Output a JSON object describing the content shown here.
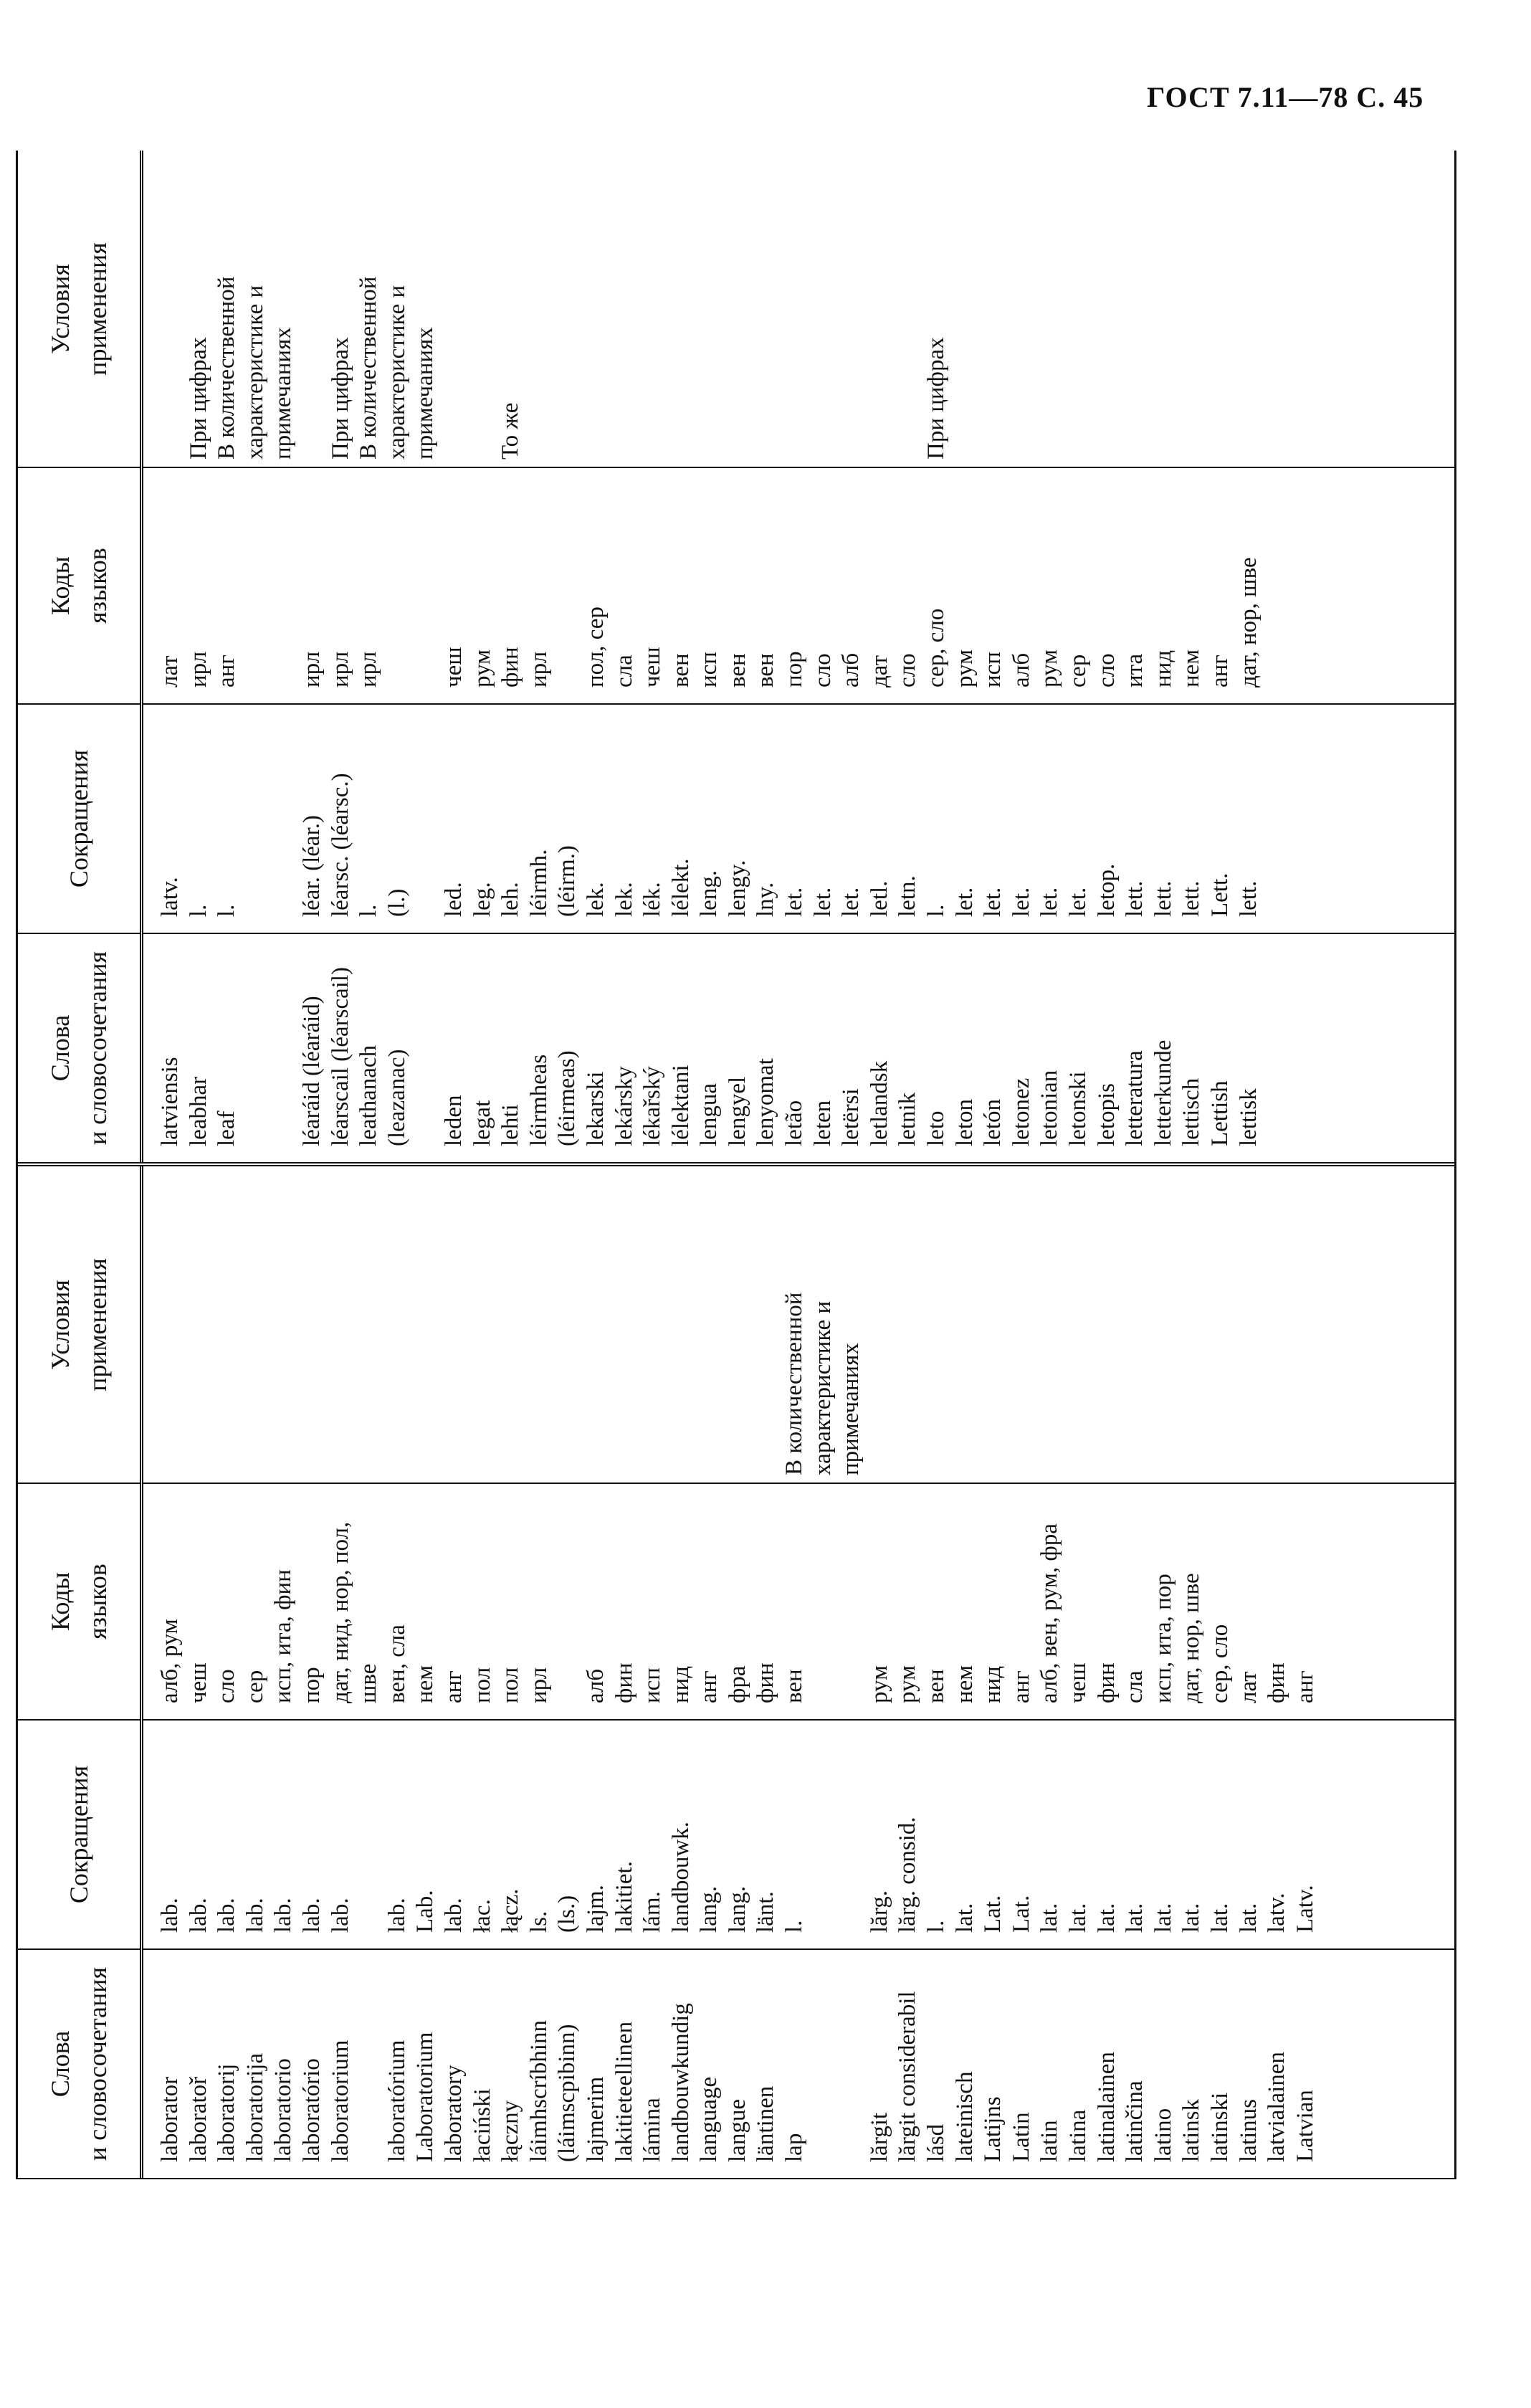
{
  "page_header": "ГОСТ 7.11—78 С. 45",
  "columns": {
    "words": "Слова\nи словосочетания",
    "abbr": "Сокращения",
    "codes": "Коды\nязыков",
    "cond": "Условия\nприменения"
  },
  "left_table": {
    "rows": [
      {
        "word": "laborator",
        "abbr": "lab.",
        "codes": "алб, рум",
        "cond": ""
      },
      {
        "word": "laboratoř",
        "abbr": "lab.",
        "codes": "чеш",
        "cond": ""
      },
      {
        "word": "laboratorij",
        "abbr": "lab.",
        "codes": "сло",
        "cond": ""
      },
      {
        "word": "laboratorija",
        "abbr": "lab.",
        "codes": "сер",
        "cond": ""
      },
      {
        "word": "laboratorio",
        "abbr": "lab.",
        "codes": "исп, ита, фин",
        "cond": ""
      },
      {
        "word": "laboratório",
        "abbr": "lab.",
        "codes": "пор",
        "cond": ""
      },
      {
        "word": "laboratorium",
        "abbr": "lab.",
        "codes": "дат, нид, нор, пол,",
        "cond": ""
      },
      {
        "word": "",
        "abbr": "",
        "codes": "шве",
        "cond": ""
      },
      {
        "word": "laboratórium",
        "abbr": "lab.",
        "codes": "вен, сла",
        "cond": ""
      },
      {
        "word": "Laboratorium",
        "abbr": "Lab.",
        "codes": "нем",
        "cond": ""
      },
      {
        "word": "laboratory",
        "abbr": "lab.",
        "codes": "анг",
        "cond": ""
      },
      {
        "word": "łaciński",
        "abbr": "łac.",
        "codes": "пол",
        "cond": ""
      },
      {
        "word": "łączny",
        "abbr": "łącz.",
        "codes": "пол",
        "cond": ""
      },
      {
        "word": "láimhscríbhinn",
        "abbr": "ls.",
        "codes": "ирл",
        "cond": ""
      },
      {
        "word": "(láimscpibinn)",
        "abbr": "(ls.)",
        "codes": "",
        "cond": ""
      },
      {
        "word": "lajmerim",
        "abbr": "lajm.",
        "codes": "алб",
        "cond": ""
      },
      {
        "word": "lakitieteellinen",
        "abbr": "lakitiet.",
        "codes": "фин",
        "cond": ""
      },
      {
        "word": "lámina",
        "abbr": "lám.",
        "codes": "исп",
        "cond": ""
      },
      {
        "word": "landbouwkundig",
        "abbr": "landbouwk.",
        "codes": "нид",
        "cond": ""
      },
      {
        "word": "language",
        "abbr": "lang.",
        "codes": "анг",
        "cond": ""
      },
      {
        "word": "langue",
        "abbr": "lang.",
        "codes": "фра",
        "cond": ""
      },
      {
        "word": "läntinen",
        "abbr": "länt.",
        "codes": "фин",
        "cond": ""
      },
      {
        "word": "lap",
        "abbr": "l.",
        "codes": "вен",
        "cond": "В количественной"
      },
      {
        "word": "",
        "abbr": "",
        "codes": "",
        "cond": "характеристике и"
      },
      {
        "word": "",
        "abbr": "",
        "codes": "",
        "cond": "примечаниях"
      },
      {
        "word": "lărgit",
        "abbr": "lărg.",
        "codes": "рум",
        "cond": ""
      },
      {
        "word": "lărgit considerabil",
        "abbr": "lărg. consid.",
        "codes": "рум",
        "cond": ""
      },
      {
        "word": "lásd",
        "abbr": "l.",
        "codes": "вен",
        "cond": ""
      },
      {
        "word": "lateinisch",
        "abbr": "lat.",
        "codes": "нем",
        "cond": ""
      },
      {
        "word": "Latijns",
        "abbr": "Lat.",
        "codes": "нид",
        "cond": ""
      },
      {
        "word": "Latin",
        "abbr": "Lat.",
        "codes": "анг",
        "cond": ""
      },
      {
        "word": "latin",
        "abbr": "lat.",
        "codes": "алб, вен, рум, фра",
        "cond": ""
      },
      {
        "word": "latina",
        "abbr": "lat.",
        "codes": "чеш",
        "cond": ""
      },
      {
        "word": "latinalainen",
        "abbr": "lat.",
        "codes": "фин",
        "cond": ""
      },
      {
        "word": "latinčina",
        "abbr": "lat.",
        "codes": "сла",
        "cond": ""
      },
      {
        "word": "latino",
        "abbr": "lat.",
        "codes": "исп, ита, пор",
        "cond": ""
      },
      {
        "word": "latinsk",
        "abbr": "lat.",
        "codes": "дат, нор, шве",
        "cond": ""
      },
      {
        "word": "latinski",
        "abbr": "lat.",
        "codes": "сер, сло",
        "cond": ""
      },
      {
        "word": "latinus",
        "abbr": "lat.",
        "codes": "лат",
        "cond": ""
      },
      {
        "word": "latvialainen",
        "abbr": "latv.",
        "codes": "фин",
        "cond": ""
      },
      {
        "word": "Latvian",
        "abbr": "Latv.",
        "codes": "анг",
        "cond": ""
      }
    ]
  },
  "right_table": {
    "rows": [
      {
        "word": "latviensis",
        "abbr": "latv.",
        "codes": "лат",
        "cond": ""
      },
      {
        "word": "leabhar",
        "abbr": "l.",
        "codes": "ирл",
        "cond": "При цифрах"
      },
      {
        "word": "leaf",
        "abbr": "l.",
        "codes": "анг",
        "cond": "В количественной"
      },
      {
        "word": "",
        "abbr": "",
        "codes": "",
        "cond": "характеристике и"
      },
      {
        "word": "",
        "abbr": "",
        "codes": "",
        "cond": "примечаниях"
      },
      {
        "word": "léaráid (léaráid)",
        "abbr": "léar. (léar.)",
        "codes": "ирл",
        "cond": ""
      },
      {
        "word": "léarscail (léarscail)",
        "abbr": "léarsc. (léarsc.)",
        "codes": "ирл",
        "cond": "При цифрах"
      },
      {
        "word": "leathanach",
        "abbr": "l.",
        "codes": "ирл",
        "cond": "В количественной"
      },
      {
        "word": "(leazanac)",
        "abbr": "(l.)",
        "codes": "",
        "cond": "характеристике и"
      },
      {
        "word": "",
        "abbr": "",
        "codes": "",
        "cond": "примечаниях"
      },
      {
        "word": "leden",
        "abbr": "led.",
        "codes": "чеш",
        "cond": ""
      },
      {
        "word": "legat",
        "abbr": "leg.",
        "codes": "рум",
        "cond": ""
      },
      {
        "word": "lehti",
        "abbr": "leh.",
        "codes": "фин",
        "cond": "То же"
      },
      {
        "word": "léirmheas",
        "abbr": "léirmh.",
        "codes": "ирл",
        "cond": ""
      },
      {
        "word": "(léirmeas)",
        "abbr": "(léirm.)",
        "codes": "",
        "cond": ""
      },
      {
        "word": "lekarski",
        "abbr": "lek.",
        "codes": "пол, сер",
        "cond": ""
      },
      {
        "word": "lekársky",
        "abbr": "lek.",
        "codes": "сла",
        "cond": ""
      },
      {
        "word": "lékařský",
        "abbr": "lék.",
        "codes": "чеш",
        "cond": ""
      },
      {
        "word": "lélektani",
        "abbr": "lélekt.",
        "codes": "вен",
        "cond": ""
      },
      {
        "word": "lengua",
        "abbr": "leng.",
        "codes": "исп",
        "cond": ""
      },
      {
        "word": "lengyel",
        "abbr": "lengy.",
        "codes": "вен",
        "cond": ""
      },
      {
        "word": "lenyomat",
        "abbr": "lny.",
        "codes": "вен",
        "cond": ""
      },
      {
        "word": "letão",
        "abbr": "let.",
        "codes": "пор",
        "cond": ""
      },
      {
        "word": "leten",
        "abbr": "let.",
        "codes": "сло",
        "cond": ""
      },
      {
        "word": "letërsi",
        "abbr": "let.",
        "codes": "алб",
        "cond": ""
      },
      {
        "word": "letlandsk",
        "abbr": "letl.",
        "codes": "дат",
        "cond": ""
      },
      {
        "word": "letnik",
        "abbr": "letn.",
        "codes": "сло",
        "cond": ""
      },
      {
        "word": "leto",
        "abbr": "l.",
        "codes": "сер, сло",
        "cond": "При цифрах"
      },
      {
        "word": "leton",
        "abbr": "let.",
        "codes": "рум",
        "cond": ""
      },
      {
        "word": "letón",
        "abbr": "let.",
        "codes": "исп",
        "cond": ""
      },
      {
        "word": "letonez",
        "abbr": "let.",
        "codes": "алб",
        "cond": ""
      },
      {
        "word": "letonian",
        "abbr": "let.",
        "codes": "рум",
        "cond": ""
      },
      {
        "word": "letonski",
        "abbr": "let.",
        "codes": "сер",
        "cond": ""
      },
      {
        "word": "letopis",
        "abbr": "letop.",
        "codes": "сло",
        "cond": ""
      },
      {
        "word": "letteratura",
        "abbr": "lett.",
        "codes": "ита",
        "cond": ""
      },
      {
        "word": "letterkunde",
        "abbr": "lett.",
        "codes": "нид",
        "cond": ""
      },
      {
        "word": "lettisch",
        "abbr": "lett.",
        "codes": "нем",
        "cond": ""
      },
      {
        "word": "Lettish",
        "abbr": "Lett.",
        "codes": "анг",
        "cond": ""
      },
      {
        "word": "lettisk",
        "abbr": "lett.",
        "codes": "дат, нор, шве",
        "cond": ""
      }
    ]
  }
}
